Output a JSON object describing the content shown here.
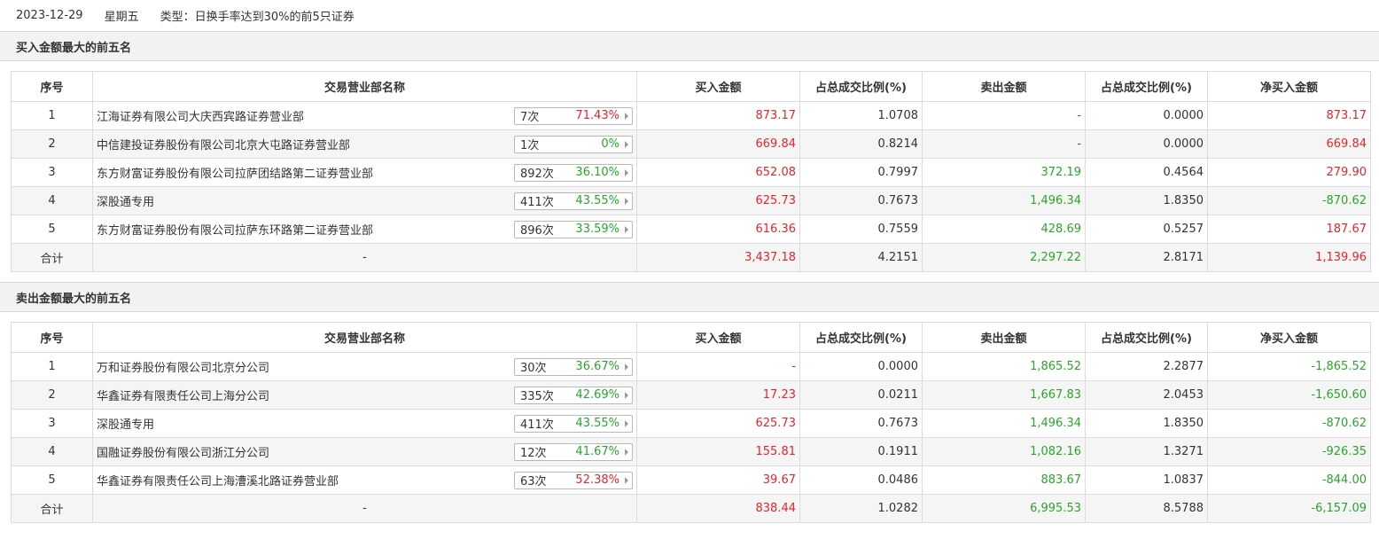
{
  "header": {
    "date": "2023-12-29",
    "weekday": "星期五",
    "type_label": "类型：日换手率达到30%的前5只证券"
  },
  "columns": [
    "序号",
    "交易营业部名称",
    "买入金额",
    "占总成交比例(%)",
    "卖出金额",
    "占总成交比例(%)",
    "净买入金额"
  ],
  "buy_section": {
    "title": "买入金额最大的前五名",
    "rows": [
      {
        "rank": "1",
        "name": "江海证券有限公司大庆西宾路证券营业部",
        "count": "7次",
        "pct": "71.43%",
        "buy": "873.17",
        "buy_ratio": "1.0708",
        "sell": "-",
        "sell_ratio": "0.0000",
        "net": "873.17"
      },
      {
        "rank": "2",
        "name": "中信建投证券股份有限公司北京大屯路证券营业部",
        "count": "1次",
        "pct": "0%",
        "buy": "669.84",
        "buy_ratio": "0.8214",
        "sell": "-",
        "sell_ratio": "0.0000",
        "net": "669.84"
      },
      {
        "rank": "3",
        "name": "东方财富证券股份有限公司拉萨团结路第二证券营业部",
        "count": "892次",
        "pct": "36.10%",
        "buy": "652.08",
        "buy_ratio": "0.7997",
        "sell": "372.19",
        "sell_ratio": "0.4564",
        "net": "279.90"
      },
      {
        "rank": "4",
        "name": "深股通专用",
        "count": "411次",
        "pct": "43.55%",
        "buy": "625.73",
        "buy_ratio": "0.7673",
        "sell": "1,496.34",
        "sell_ratio": "1.8350",
        "net": "-870.62"
      },
      {
        "rank": "5",
        "name": "东方财富证券股份有限公司拉萨东环路第二证券营业部",
        "count": "896次",
        "pct": "33.59%",
        "buy": "616.36",
        "buy_ratio": "0.7559",
        "sell": "428.69",
        "sell_ratio": "0.5257",
        "net": "187.67"
      }
    ],
    "total": {
      "label": "合计",
      "name": "-",
      "buy": "3,437.18",
      "buy_ratio": "4.2151",
      "sell": "2,297.22",
      "sell_ratio": "2.8171",
      "net": "1,139.96"
    }
  },
  "sell_section": {
    "title": "卖出金额最大的前五名",
    "rows": [
      {
        "rank": "1",
        "name": "万和证券股份有限公司北京分公司",
        "count": "30次",
        "pct": "36.67%",
        "buy": "-",
        "buy_ratio": "0.0000",
        "sell": "1,865.52",
        "sell_ratio": "2.2877",
        "net": "-1,865.52"
      },
      {
        "rank": "2",
        "name": "华鑫证券有限责任公司上海分公司",
        "count": "335次",
        "pct": "42.69%",
        "buy": "17.23",
        "buy_ratio": "0.0211",
        "sell": "1,667.83",
        "sell_ratio": "2.0453",
        "net": "-1,650.60"
      },
      {
        "rank": "3",
        "name": "深股通专用",
        "count": "411次",
        "pct": "43.55%",
        "buy": "625.73",
        "buy_ratio": "0.7673",
        "sell": "1,496.34",
        "sell_ratio": "1.8350",
        "net": "-870.62"
      },
      {
        "rank": "4",
        "name": "国融证券股份有限公司浙江分公司",
        "count": "12次",
        "pct": "41.67%",
        "buy": "155.81",
        "buy_ratio": "0.1911",
        "sell": "1,082.16",
        "sell_ratio": "1.3271",
        "net": "-926.35"
      },
      {
        "rank": "5",
        "name": "华鑫证券有限责任公司上海漕溪北路证券营业部",
        "count": "63次",
        "pct": "52.38%",
        "buy": "39.67",
        "buy_ratio": "0.0486",
        "sell": "883.67",
        "sell_ratio": "1.0837",
        "net": "-844.00"
      }
    ],
    "total": {
      "label": "合计",
      "name": "-",
      "buy": "838.44",
      "buy_ratio": "1.0282",
      "sell": "6,995.53",
      "sell_ratio": "8.5788",
      "net": "-6,157.09"
    }
  },
  "colors": {
    "positive": "#e3262b",
    "negative": "#2aa52a",
    "header_bg": "#f2f2f2",
    "alt_row_bg": "#f5f5f5"
  },
  "icons": {
    "stat_arrow": "caret-right-icon"
  }
}
